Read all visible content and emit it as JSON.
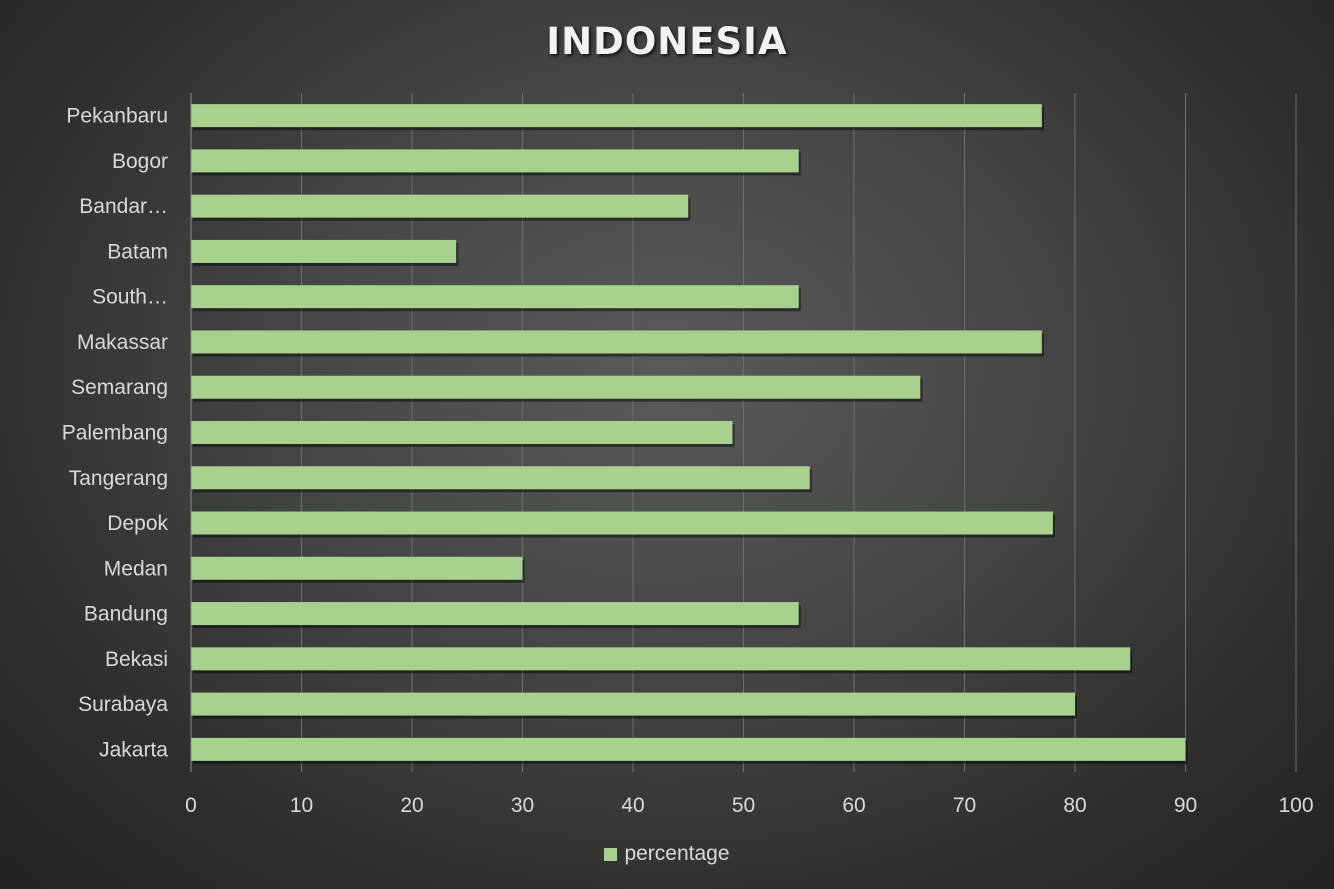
{
  "chart_data": {
    "type": "bar",
    "orientation": "horizontal",
    "title": "INDONESIA",
    "categories": [
      "Jakarta",
      "Surabaya",
      "Bekasi",
      "Bandung",
      "Medan",
      "Depok",
      "Tangerang",
      "Palembang",
      "Semarang",
      "Makassar",
      "South…",
      "Batam",
      "Bandar…",
      "Bogor",
      "Pekanbaru"
    ],
    "series": [
      {
        "name": "percentage",
        "color": "#a9d18e",
        "values": [
          90,
          80,
          85,
          55,
          30,
          78,
          56,
          49,
          66,
          77,
          55,
          24,
          45,
          55,
          77
        ]
      }
    ],
    "xlim": [
      0,
      100
    ],
    "xticks": [
      "0",
      "10",
      "20",
      "30",
      "40",
      "50",
      "60",
      "70",
      "80",
      "90",
      "100"
    ],
    "xlabel": "",
    "ylabel": "",
    "grid": true,
    "legend_position": "bottom"
  }
}
